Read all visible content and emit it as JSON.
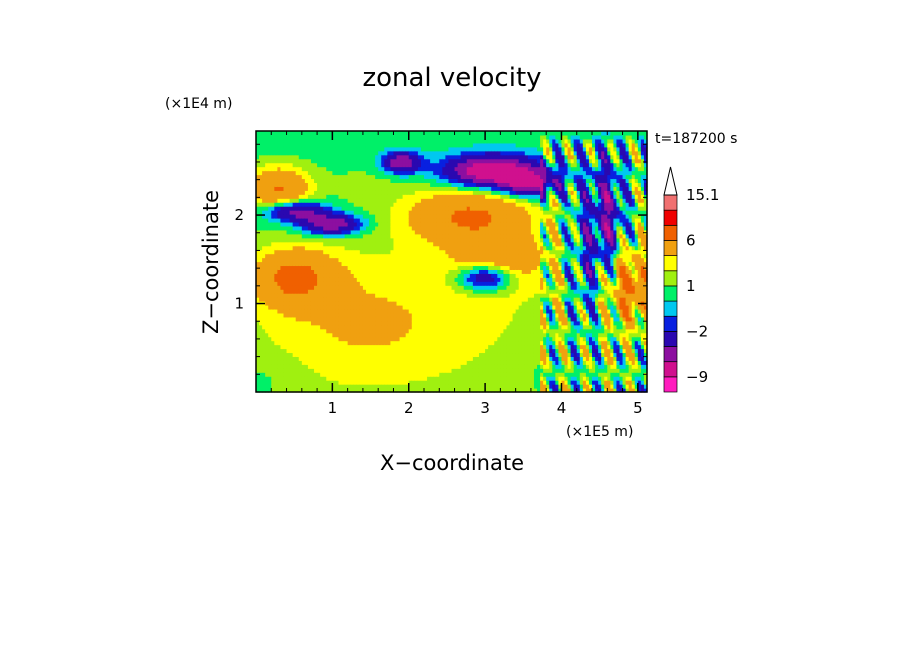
{
  "chart_data": {
    "type": "heatmap",
    "title": "zonal velocity",
    "xlabel": "X−coordinate",
    "ylabel": "Z−coordinate",
    "x_unit": "(×1E5 m)",
    "y_unit": "(×1E4 m)",
    "time_label": "t=187200 s",
    "xlim": [
      0,
      5.12
    ],
    "ylim": [
      0,
      2.95
    ],
    "x_ticks": [
      1,
      2,
      3,
      4,
      5
    ],
    "y_ticks": [
      1,
      2
    ],
    "x_tick_labels": [
      "1",
      "2",
      "3",
      "4",
      "5"
    ],
    "y_tick_labels": [
      "1",
      "2"
    ],
    "colorbar": {
      "levels": [
        -12,
        -9,
        -6,
        -4,
        -2,
        -1,
        0,
        1,
        2,
        3,
        6,
        9,
        12,
        15.1
      ],
      "colors": [
        "#ff1cbe",
        "#d0108e",
        "#8c0fa0",
        "#2a08b0",
        "#0820e0",
        "#00c8f0",
        "#00f068",
        "#a0f010",
        "#ffff00",
        "#f0a010",
        "#f06000",
        "#f00000",
        "#f07070",
        "#f8b8b8"
      ],
      "tick_labels": [
        "15.1",
        "6",
        "1",
        "−2",
        "−9"
      ],
      "tick_values": [
        15.1,
        6,
        1,
        -2,
        -9
      ],
      "extend": "max"
    },
    "blobs": [
      {
        "x": 2.5,
        "z": 0.8,
        "v": 2,
        "rx": 2.6,
        "rz": 1.0
      },
      {
        "x": 1.2,
        "z": 0.8,
        "v": 2,
        "rx": 1.4,
        "rz": 0.9
      },
      {
        "x": 0.5,
        "z": 1.3,
        "v": 6,
        "rx": 0.5,
        "rz": 0.3
      },
      {
        "x": 0.3,
        "z": 2.3,
        "v": 6,
        "rx": 0.4,
        "rz": 0.25
      },
      {
        "x": 2.8,
        "z": 2.0,
        "v": 6,
        "rx": 0.8,
        "rz": 0.3
      },
      {
        "x": 3.2,
        "z": 1.5,
        "v": 4,
        "rx": 0.6,
        "rz": 0.3
      },
      {
        "x": 3.1,
        "z": 2.5,
        "v": -9,
        "rx": 0.6,
        "rz": 0.18
      },
      {
        "x": 3.6,
        "z": 2.35,
        "v": -6,
        "rx": 0.35,
        "rz": 0.14
      },
      {
        "x": 1.9,
        "z": 2.6,
        "v": -6,
        "rx": 0.25,
        "rz": 0.12
      },
      {
        "x": 1.0,
        "z": 1.9,
        "v": -6,
        "rx": 0.4,
        "rz": 0.12
      },
      {
        "x": 0.5,
        "z": 2.05,
        "v": -6,
        "rx": 0.4,
        "rz": 0.12
      },
      {
        "x": 3.0,
        "z": 1.3,
        "v": -6,
        "rx": 0.35,
        "rz": 0.15
      },
      {
        "x": 4.9,
        "z": 1.2,
        "v": 6,
        "rx": 0.25,
        "rz": 0.4
      },
      {
        "x": 4.6,
        "z": 2.0,
        "v": -4,
        "rx": 0.2,
        "rz": 0.6
      },
      {
        "x": 4.3,
        "z": 1.5,
        "v": -2,
        "rx": 0.2,
        "rz": 0.9
      },
      {
        "x": 3.8,
        "z": 0.3,
        "v": 0,
        "rx": 0.6,
        "rz": 0.3
      },
      {
        "x": 0.2,
        "z": 0.2,
        "v": 0,
        "rx": 0.5,
        "rz": 0.25
      },
      {
        "x": 1.5,
        "z": 2.4,
        "v": 1,
        "rx": 0.6,
        "rz": 0.3
      }
    ]
  }
}
